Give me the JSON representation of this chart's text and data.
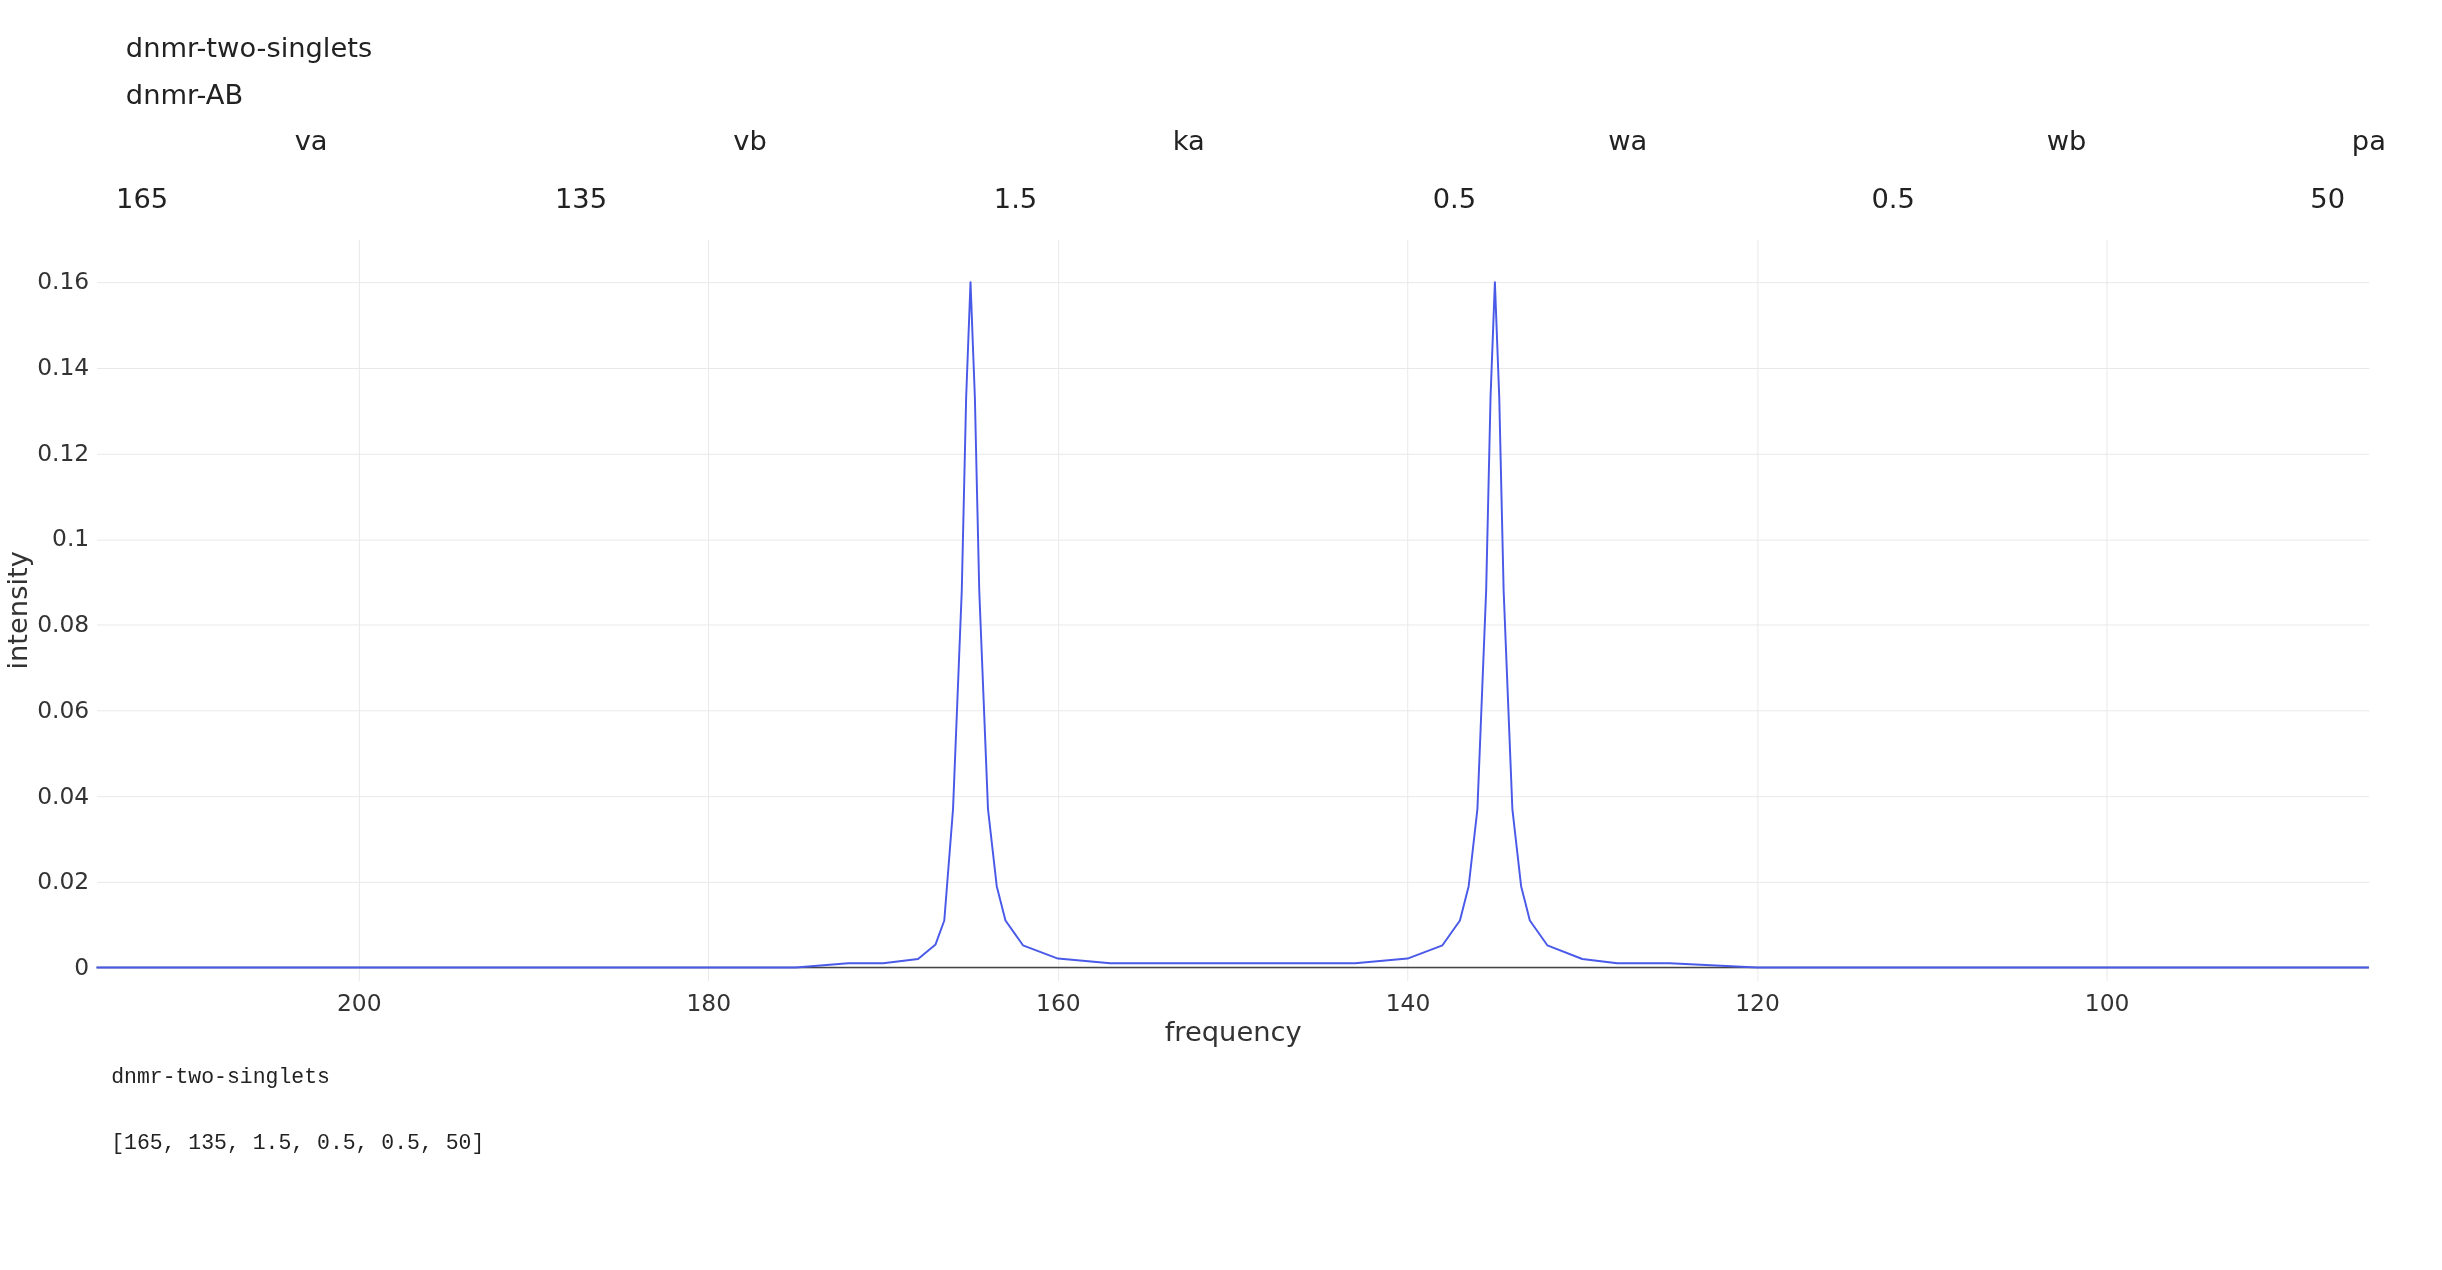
{
  "chart_data": {
    "type": "line",
    "xlabel": "frequency",
    "ylabel": "intensity",
    "annotations": [
      "dnmr-two-singlets",
      "dnmr-AB",
      "va",
      "165",
      "vb",
      "135",
      "ka",
      "1.5",
      "wa",
      "0.5",
      "wb",
      "0.5",
      "pa",
      "50",
      "dnmr-two-singlets",
      "[165, 135, 1.5, 0.5, 0.5, 50]"
    ],
    "x": [
      215,
      200,
      190,
      180,
      175,
      172,
      170,
      168,
      167,
      166.5,
      166,
      165.5,
      165.25,
      165,
      164.75,
      164.5,
      164,
      163.5,
      163,
      162,
      160,
      157,
      150,
      143,
      140,
      138,
      137,
      136.5,
      136,
      135.5,
      135.25,
      135,
      134.75,
      134.5,
      134,
      133.5,
      133,
      132,
      130,
      128,
      125,
      120,
      110,
      100,
      85
    ],
    "series": [
      {
        "color": "#4a5ae8",
        "values": [
          0,
          0,
          0,
          0,
          0,
          0.001,
          0.001,
          0.002,
          0.0054,
          0.011,
          0.037,
          0.088,
          0.133,
          0.16,
          0.133,
          0.088,
          0.037,
          0.019,
          0.011,
          0.0052,
          0.0021,
          0.001,
          0.001,
          0.001,
          0.0021,
          0.0052,
          0.011,
          0.019,
          0.037,
          0.088,
          0.133,
          0.16,
          0.133,
          0.088,
          0.037,
          0.019,
          0.011,
          0.0052,
          0.002,
          0.001,
          0.001,
          0,
          0,
          0,
          0
        ]
      }
    ],
    "xlim": [
      215,
      85
    ],
    "xticks": [
      200,
      180,
      160,
      140,
      120,
      100
    ],
    "ylim": [
      -0.003,
      0.17
    ],
    "yticks": [
      0,
      0.02,
      0.04,
      0.06,
      0.08,
      0.1,
      0.12,
      0.14,
      0.16
    ],
    "grid": true,
    "marker": "none",
    "line_style": "solid"
  }
}
